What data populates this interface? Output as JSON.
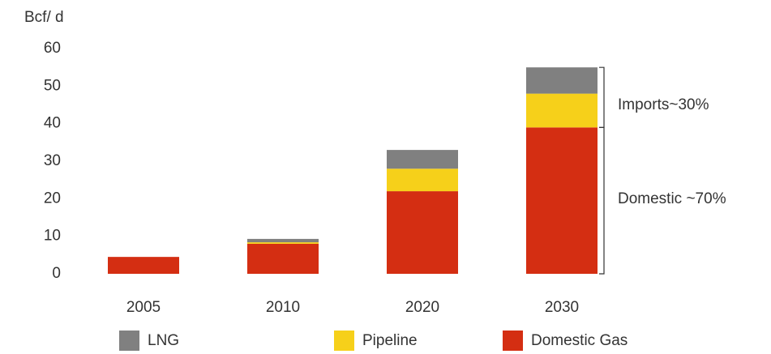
{
  "chart_data": {
    "type": "bar",
    "stacked": true,
    "y_axis_label": "Bcf/ d",
    "categories": [
      "2005",
      "2010",
      "2020",
      "2030"
    ],
    "series": [
      {
        "name": "LNG",
        "color": "#808080",
        "values": [
          0,
          0.9,
          5,
          7
        ]
      },
      {
        "name": "Pipeline",
        "color": "#f6d01a",
        "values": [
          0,
          0.4,
          6,
          9
        ]
      },
      {
        "name": "Domestic Gas",
        "color": "#d42e12",
        "values": [
          4.5,
          8,
          22,
          39
        ]
      }
    ],
    "annotations": [
      "Imports~30%",
      "Domestic ~70%"
    ],
    "ylim": [
      0,
      60
    ],
    "yticks": [
      0,
      10,
      20,
      30,
      40,
      50,
      60
    ],
    "grid": false
  }
}
